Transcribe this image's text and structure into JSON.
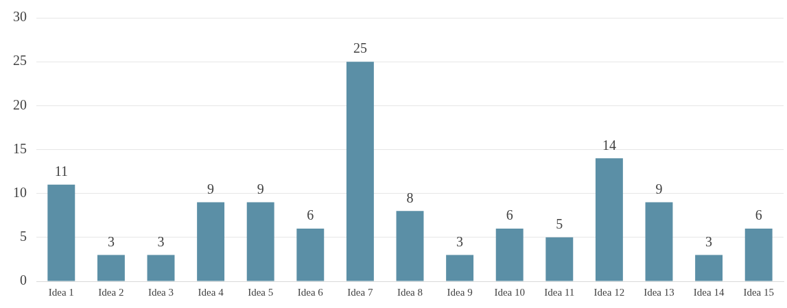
{
  "chart_data": {
    "type": "bar",
    "categories": [
      "Idea 1",
      "Idea 2",
      "Idea 3",
      "Idea 4",
      "Idea 5",
      "Idea 6",
      "Idea 7",
      "Idea 8",
      "Idea 9",
      "Idea 10",
      "Idea 11",
      "Idea 12",
      "Idea 13",
      "Idea 14",
      "Idea 15"
    ],
    "values": [
      11,
      3,
      3,
      9,
      9,
      6,
      25,
      8,
      3,
      6,
      5,
      14,
      9,
      3,
      6
    ],
    "color": "#5b8fa6",
    "ylim": [
      0,
      30
    ],
    "yticks": [
      0,
      5,
      10,
      15,
      20,
      25,
      30
    ],
    "grid": "y",
    "data_labels": true,
    "legend": false
  }
}
